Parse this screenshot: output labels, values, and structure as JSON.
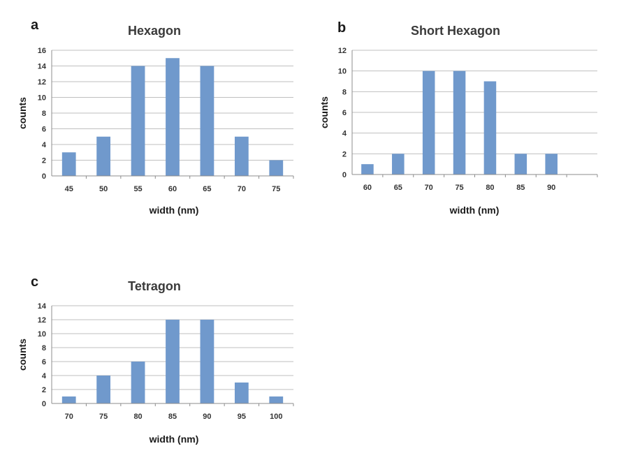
{
  "colors": {
    "bar": "#7099cc",
    "grid": "#bfbfbf",
    "axis": "#8c8c8c"
  },
  "chart_data": [
    {
      "panel": "a",
      "type": "bar",
      "title": "Hexagon",
      "xlabel": "width (nm)",
      "ylabel": "counts",
      "categories": [
        "45",
        "50",
        "55",
        "60",
        "65",
        "70",
        "75"
      ],
      "values": [
        3,
        5,
        14,
        15,
        14,
        5,
        2
      ],
      "ylim": [
        0,
        16
      ],
      "yticks": [
        "0",
        "2",
        "4",
        "6",
        "8",
        "10",
        "12",
        "14",
        "16"
      ],
      "grid": true,
      "legend": "none"
    },
    {
      "panel": "b",
      "type": "bar",
      "title": "Short Hexagon",
      "xlabel": "width (nm)",
      "ylabel": "counts",
      "categories": [
        "60",
        "65",
        "70",
        "75",
        "80",
        "85",
        "90",
        ""
      ],
      "values": [
        1,
        2,
        10,
        10,
        9,
        2,
        2,
        0
      ],
      "ylim": [
        0,
        12
      ],
      "yticks": [
        "0",
        "2",
        "4",
        "6",
        "8",
        "10",
        "12"
      ],
      "grid": true,
      "legend": "none"
    },
    {
      "panel": "c",
      "type": "bar",
      "title": "Tetragon",
      "xlabel": "width (nm)",
      "ylabel": "counts",
      "categories": [
        "70",
        "75",
        "80",
        "85",
        "90",
        "95",
        "100"
      ],
      "values": [
        1,
        4,
        6,
        12,
        12,
        3,
        1
      ],
      "ylim": [
        0,
        14
      ],
      "yticks": [
        "0",
        "2",
        "4",
        "6",
        "8",
        "10",
        "12",
        "14"
      ],
      "grid": true,
      "legend": "none"
    }
  ]
}
